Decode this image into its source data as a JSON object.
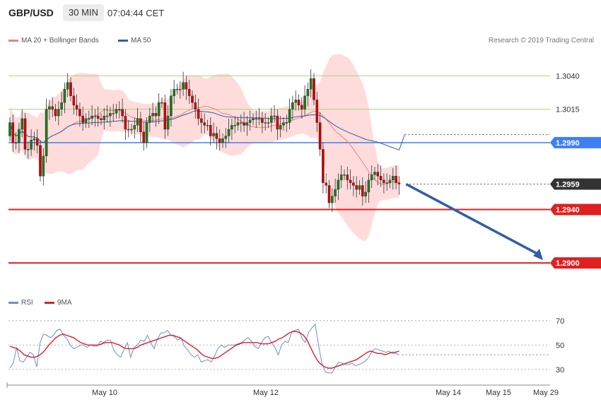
{
  "header": {
    "symbol": "GBP/USD",
    "timeframe": "30 MIN",
    "time": "07:04:44 CET"
  },
  "legend": {
    "bollinger_label": "MA 20 + Bollinger Bands",
    "ma50_label": "MA 50",
    "credit": "Research © 2019 Trading Central"
  },
  "rsi_legend": {
    "rsi_label": "RSI",
    "ma_label": "9MA"
  },
  "colors": {
    "band_fill": "#ffd6d6",
    "ma20": "#f08080",
    "ma50": "#2f5fa7",
    "candle_up": "#1a7a1a",
    "candle_down": "#cc0000",
    "resistance": "#a8d47a",
    "pivot": "#3d7ff5",
    "support": "#e02020",
    "forecast_arrow": "#2f5fa7",
    "rsi_line": "#6a8fd8",
    "rsi_ma": "#e02020"
  },
  "chart_data": [
    {
      "type": "candlestick",
      "title": "GBP/USD",
      "ylim": [
        1.288,
        1.3065
      ],
      "x_ticks": [
        "May 10",
        "May 12",
        "May 14",
        "May 15",
        "May 29"
      ],
      "levels": [
        {
          "label": "1.3040",
          "value": 1.304,
          "kind": "resistance"
        },
        {
          "label": "1.3015",
          "value": 1.3015,
          "kind": "resistance"
        },
        {
          "label": "1.2990",
          "value": 1.299,
          "kind": "pivot"
        },
        {
          "label": "1.2959",
          "value": 1.2959,
          "kind": "last"
        },
        {
          "label": "1.2940",
          "value": 1.294,
          "kind": "support"
        },
        {
          "label": "1.2900",
          "value": 1.29,
          "kind": "support"
        }
      ],
      "series": [
        {
          "name": "MA 20 + Bollinger Bands"
        },
        {
          "name": "MA 50"
        }
      ],
      "forecast": {
        "from": 1.2959,
        "to": 1.29
      },
      "closes": [
        1.3005,
        1.299,
        1.299,
        1.3,
        1.3008,
        1.2985,
        1.2985,
        1.2992,
        1.2993,
        1.2988,
        1.2965,
        1.298,
        1.3015,
        1.3017,
        1.3015,
        1.301,
        1.3015,
        1.302,
        1.303,
        1.3035,
        1.3025,
        1.3018,
        1.3015,
        1.301,
        1.3005,
        1.3008,
        1.3008,
        1.301,
        1.301,
        1.3008,
        1.3007,
        1.301,
        1.301,
        1.3012,
        1.3012,
        1.3015,
        1.3015,
        1.301,
        1.3,
        1.3,
        1.3,
        1.3003,
        1.3008,
        1.2998,
        1.299,
        1.3005,
        1.301,
        1.3012,
        1.301,
        1.302,
        1.302,
        1.3,
        1.301,
        1.3025,
        1.303,
        1.303,
        1.303,
        1.3035,
        1.303,
        1.3025,
        1.302,
        1.3015,
        1.3008,
        1.3005,
        1.3003,
        1.3003,
        1.2995,
        1.2997,
        1.2993,
        1.299,
        1.2993,
        1.2995,
        1.3,
        1.3003,
        1.3003,
        1.3005,
        1.3005,
        1.3003,
        1.3005,
        1.3007,
        1.3008,
        1.3008,
        1.3008,
        1.3005,
        1.3005,
        1.3005,
        1.301,
        1.301,
        1.3,
        1.3003,
        1.3005,
        1.3005,
        1.3015,
        1.302,
        1.3022,
        1.3018,
        1.3015,
        1.3025,
        1.303,
        1.3038,
        1.3022,
        1.3005,
        1.2985,
        1.296,
        1.2958,
        1.2945,
        1.295,
        1.2955,
        1.2962,
        1.2966,
        1.2966,
        1.2962,
        1.296,
        1.2958,
        1.2955,
        1.2958,
        1.295,
        1.2953,
        1.2962,
        1.2966,
        1.2968,
        1.2965,
        1.2962,
        1.296,
        1.296,
        1.2962,
        1.2965,
        1.296,
        1.2959
      ],
      "rsi": {
        "ylim": [
          20,
          78
        ],
        "ticks": [
          70,
          50,
          30
        ],
        "rsi_values": [
          31,
          35,
          48,
          37,
          36,
          40,
          44,
          42,
          32,
          52,
          59,
          58,
          56,
          58,
          62,
          63,
          58,
          55,
          50,
          47,
          48,
          50,
          50,
          48,
          50,
          49,
          49,
          53,
          52,
          54,
          54,
          46,
          42,
          40,
          46,
          52,
          40,
          48,
          50,
          54,
          53,
          58,
          52,
          47,
          55,
          60,
          60,
          62,
          58,
          57,
          54,
          56,
          49,
          46,
          42,
          40,
          42,
          36,
          37,
          38,
          36,
          41,
          47,
          50,
          48,
          50,
          50,
          50,
          51,
          52,
          54,
          56,
          53,
          49,
          47,
          52,
          56,
          57,
          52,
          48,
          42,
          50,
          53,
          52,
          61,
          62,
          63,
          56,
          52,
          60,
          64,
          67,
          50,
          35,
          28,
          27,
          27,
          32,
          36,
          35,
          34,
          34,
          35,
          33,
          34,
          35,
          37,
          40,
          45,
          47,
          46,
          45,
          44,
          45,
          43,
          43,
          42
        ],
        "ma_values": [
          49,
          48,
          47,
          45,
          42,
          41,
          40,
          40,
          41,
          43,
          46,
          50,
          53,
          56,
          58,
          59,
          58,
          57,
          56,
          54,
          52,
          51,
          50,
          50,
          50,
          50,
          51,
          52,
          52,
          52,
          51,
          50,
          48,
          47,
          47,
          47,
          48,
          50,
          51,
          52,
          53,
          54,
          55,
          56,
          57,
          58,
          58,
          57,
          56,
          54,
          52,
          50,
          48,
          46,
          43,
          41,
          40,
          39,
          39,
          40,
          42,
          44,
          46,
          48,
          50,
          51,
          52,
          52,
          52,
          52,
          52,
          51,
          51,
          51,
          52,
          53,
          55,
          56,
          58,
          60,
          61,
          61,
          60,
          58,
          54,
          48,
          42,
          37,
          34,
          32,
          31,
          31,
          32,
          33,
          34,
          35,
          36,
          37,
          38,
          40,
          42,
          44,
          45,
          44,
          43,
          43,
          42,
          43,
          44,
          44,
          45
        ],
        "ticks_labels": [
          "70",
          "50",
          "30"
        ]
      }
    }
  ]
}
